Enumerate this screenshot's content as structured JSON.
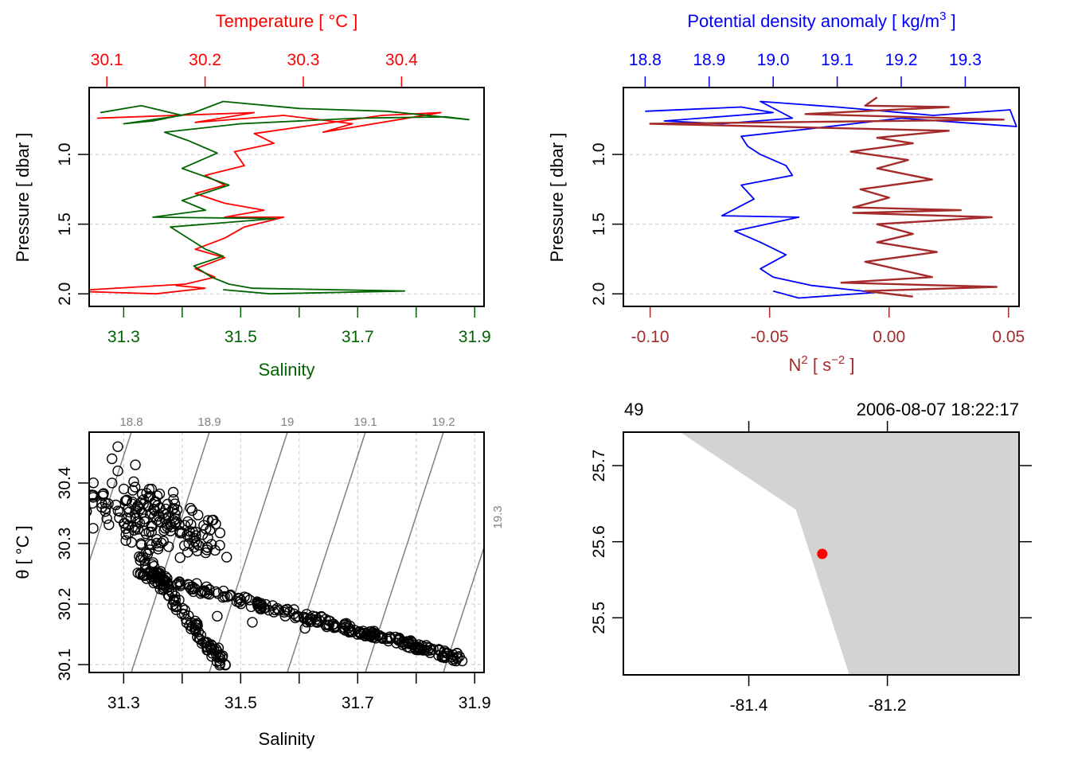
{
  "chart_data": [
    {
      "id": "profile_ts",
      "type": "line",
      "title": "",
      "top_axis": {
        "label": "Temperature [ °C ]",
        "color": "#ff0000",
        "ticks": [
          30.1,
          30.2,
          30.3,
          30.4
        ],
        "tick_labels": [
          "30.1",
          "30.2",
          "30.3",
          "30.4"
        ],
        "range": [
          30.082,
          30.484
        ]
      },
      "bottom_axis": {
        "label": "Salinity",
        "color": "#006400",
        "ticks": [
          31.3,
          31.4,
          31.5,
          31.6,
          31.7,
          31.8,
          31.9
        ],
        "tick_labels": [
          "31.3",
          "",
          "31.5",
          "",
          "31.7",
          "",
          "31.9"
        ],
        "range": [
          31.241,
          31.916
        ]
      },
      "left_axis": {
        "label": "Pressure [ dbar ]",
        "ticks": [
          1.0,
          1.5,
          2.0
        ],
        "tick_labels": [
          "1.0",
          "1.5",
          "2.0"
        ],
        "range": [
          0.52,
          2.09
        ],
        "reversed": true
      },
      "grid": "horizontal dashed at pressure ticks",
      "series": [
        {
          "name": "Temperature",
          "color": "#ff0000",
          "axis": "top",
          "points": [
            [
              30.09,
              0.74
            ],
            [
              30.25,
              0.7
            ],
            [
              30.19,
              0.77
            ],
            [
              30.28,
              0.72
            ],
            [
              30.35,
              0.78
            ],
            [
              30.32,
              0.84
            ],
            [
              30.44,
              0.7
            ],
            [
              30.38,
              0.72
            ],
            [
              30.3,
              0.8
            ],
            [
              30.25,
              0.85
            ],
            [
              30.27,
              0.92
            ],
            [
              30.23,
              0.98
            ],
            [
              30.24,
              1.08
            ],
            [
              30.2,
              1.15
            ],
            [
              30.22,
              1.22
            ],
            [
              30.19,
              1.28
            ],
            [
              30.22,
              1.35
            ],
            [
              30.26,
              1.4
            ],
            [
              30.22,
              1.45
            ],
            [
              30.28,
              1.45
            ],
            [
              30.24,
              1.52
            ],
            [
              30.22,
              1.6
            ],
            [
              30.19,
              1.68
            ],
            [
              30.22,
              1.74
            ],
            [
              30.19,
              1.82
            ],
            [
              30.21,
              1.88
            ],
            [
              30.18,
              1.93
            ],
            [
              30.06,
              1.98
            ],
            [
              30.15,
              2.0
            ],
            [
              30.2,
              1.96
            ],
            [
              30.17,
              1.94
            ]
          ]
        },
        {
          "name": "Salinity",
          "color": "#006400",
          "axis": "bottom",
          "points": [
            [
              31.26,
              0.7
            ],
            [
              31.33,
              0.65
            ],
            [
              31.4,
              0.72
            ],
            [
              31.3,
              0.78
            ],
            [
              31.35,
              0.76
            ],
            [
              31.42,
              0.7
            ],
            [
              31.47,
              0.62
            ],
            [
              31.6,
              0.67
            ],
            [
              31.75,
              0.69
            ],
            [
              31.89,
              0.75
            ],
            [
              31.85,
              0.73
            ],
            [
              31.7,
              0.74
            ],
            [
              31.5,
              0.78
            ],
            [
              31.37,
              0.84
            ],
            [
              31.41,
              0.9
            ],
            [
              31.46,
              0.99
            ],
            [
              31.4,
              1.1
            ],
            [
              31.48,
              1.22
            ],
            [
              31.4,
              1.33
            ],
            [
              31.44,
              1.4
            ],
            [
              31.35,
              1.45
            ],
            [
              31.56,
              1.46
            ],
            [
              31.38,
              1.52
            ],
            [
              31.41,
              1.6
            ],
            [
              31.44,
              1.68
            ],
            [
              31.47,
              1.73
            ],
            [
              31.42,
              1.8
            ],
            [
              31.45,
              1.88
            ],
            [
              31.48,
              1.93
            ],
            [
              31.52,
              1.96
            ],
            [
              31.78,
              1.98
            ],
            [
              31.55,
              2.0
            ],
            [
              31.47,
              1.97
            ]
          ]
        }
      ]
    },
    {
      "id": "profile_density_n2",
      "type": "line",
      "top_axis": {
        "label": "Potential density anomaly [ kg/m³ ]",
        "color": "#0000ff",
        "ticks": [
          18.8,
          18.9,
          19.0,
          19.1,
          19.2,
          19.3
        ],
        "tick_labels": [
          "18.8",
          "18.9",
          "19.0",
          "19.1",
          "19.2",
          "19.3"
        ],
        "range": [
          18.766,
          19.384
        ]
      },
      "bottom_axis": {
        "label": "N² [ s⁻² ]",
        "color": "#a52a2a",
        "ticks": [
          -0.1,
          -0.05,
          0.0,
          0.05
        ],
        "tick_labels": [
          "-0.10",
          "-0.05",
          "0.00",
          "0.05"
        ],
        "range": [
          -0.1112,
          0.0544
        ]
      },
      "left_axis": {
        "label": "Pressure [ dbar ]",
        "ticks": [
          1.0,
          1.5,
          2.0
        ],
        "tick_labels": [
          "1.0",
          "1.5",
          "2.0"
        ],
        "range": [
          0.52,
          2.09
        ],
        "reversed": true
      },
      "series": [
        {
          "name": "Potential density anomaly",
          "color": "#0000ff",
          "axis": "top",
          "points": [
            [
              18.8,
              0.69
            ],
            [
              18.95,
              0.66
            ],
            [
              19.0,
              0.7
            ],
            [
              18.83,
              0.76
            ],
            [
              18.92,
              0.78
            ],
            [
              19.03,
              0.74
            ],
            [
              18.98,
              0.62
            ],
            [
              19.1,
              0.66
            ],
            [
              19.25,
              0.72
            ],
            [
              19.37,
              0.68
            ],
            [
              19.38,
              0.8
            ],
            [
              19.2,
              0.74
            ],
            [
              19.05,
              0.82
            ],
            [
              18.95,
              0.87
            ],
            [
              18.96,
              0.94
            ],
            [
              18.98,
              1.0
            ],
            [
              19.02,
              1.08
            ],
            [
              19.03,
              1.15
            ],
            [
              18.95,
              1.22
            ],
            [
              18.97,
              1.32
            ],
            [
              18.92,
              1.44
            ],
            [
              19.04,
              1.45
            ],
            [
              18.94,
              1.55
            ],
            [
              18.98,
              1.63
            ],
            [
              19.02,
              1.72
            ],
            [
              18.98,
              1.82
            ],
            [
              19.0,
              1.88
            ],
            [
              19.06,
              1.94
            ],
            [
              19.16,
              1.99
            ],
            [
              19.04,
              2.03
            ],
            [
              19.0,
              1.98
            ]
          ]
        },
        {
          "name": "N2",
          "color": "#a52a2a",
          "axis": "bottom",
          "points": [
            [
              -0.005,
              0.59
            ],
            [
              -0.01,
              0.65
            ],
            [
              0.025,
              0.66
            ],
            [
              -0.035,
              0.71
            ],
            [
              0.048,
              0.75
            ],
            [
              -0.1,
              0.78
            ],
            [
              0.025,
              0.83
            ],
            [
              -0.005,
              0.88
            ],
            [
              0.01,
              0.92
            ],
            [
              -0.016,
              0.98
            ],
            [
              0.008,
              1.04
            ],
            [
              -0.005,
              1.1
            ],
            [
              0.018,
              1.18
            ],
            [
              -0.012,
              1.25
            ],
            [
              0.0,
              1.31
            ],
            [
              -0.015,
              1.38
            ],
            [
              0.03,
              1.4
            ],
            [
              -0.015,
              1.42
            ],
            [
              0.043,
              1.45
            ],
            [
              -0.005,
              1.5
            ],
            [
              0.01,
              1.57
            ],
            [
              -0.005,
              1.63
            ],
            [
              0.02,
              1.7
            ],
            [
              -0.01,
              1.77
            ],
            [
              0.018,
              1.88
            ],
            [
              -0.02,
              1.92
            ],
            [
              0.045,
              1.95
            ],
            [
              -0.01,
              1.98
            ],
            [
              0.01,
              2.02
            ]
          ]
        }
      ]
    },
    {
      "id": "ts_diagram",
      "type": "scatter",
      "xlabel": "Salinity",
      "ylabel": "θ [ °C ]",
      "x_ticks": [
        31.3,
        31.4,
        31.5,
        31.6,
        31.7,
        31.8,
        31.9
      ],
      "x_tick_labels": [
        "31.3",
        "",
        "31.5",
        "",
        "31.7",
        "",
        "31.9"
      ],
      "y_ticks": [
        30.1,
        30.2,
        30.3,
        30.4
      ],
      "y_tick_labels": [
        "30.1",
        "30.2",
        "30.3",
        "30.4"
      ],
      "xlim": [
        31.241,
        31.916
      ],
      "ylim": [
        30.087,
        30.484
      ],
      "grid": true,
      "marker": "open-circle",
      "isopycnal_labels": [
        "18.8",
        "18.9",
        "19",
        "19.1",
        "19.2",
        "19.3"
      ],
      "isopycnal_color": "#808080",
      "clusters": [
        {
          "name": "upper-left spike",
          "points": [
            [
              31.29,
              30.46
            ],
            [
              31.28,
              30.44
            ],
            [
              31.29,
              30.42
            ],
            [
              31.32,
              30.43
            ],
            [
              31.28,
              30.4
            ]
          ]
        },
        {
          "name": "warm dense block",
          "from": [
            31.27,
            30.38
          ],
          "to": [
            31.42,
            30.3
          ],
          "count": 180
        },
        {
          "name": "main branch",
          "from": [
            31.33,
            30.25
          ],
          "to": [
            31.88,
            30.11
          ],
          "count": 260
        },
        {
          "name": "lower branch",
          "from": [
            31.33,
            30.28
          ],
          "to": [
            31.47,
            30.1
          ],
          "count": 110
        },
        {
          "name": "outliers",
          "points": [
            [
              31.46,
              30.18
            ],
            [
              31.52,
              30.17
            ],
            [
              31.61,
              30.16
            ],
            [
              31.7,
              30.15
            ]
          ]
        }
      ]
    },
    {
      "id": "station_map",
      "type": "scatter",
      "top_left_label": "49",
      "top_right_label": "2006-08-07 18:22:17",
      "x_ticks": [
        -81.4,
        -81.2
      ],
      "x_tick_labels": [
        "-81.4",
        "-81.2"
      ],
      "y_ticks": [
        25.5,
        25.6,
        25.7
      ],
      "y_tick_labels": [
        "25.5",
        "25.6",
        "25.7"
      ],
      "xlim": [
        -81.581,
        -81.01
      ],
      "ylim": [
        25.425,
        25.744
      ],
      "land_color": "#d3d3d3",
      "coastline": [
        [
          -81.499,
          25.744
        ],
        [
          -81.332,
          25.642
        ],
        [
          -81.255,
          25.425
        ]
      ],
      "station": {
        "lon": -81.294,
        "lat": 25.584,
        "color": "#ff0000"
      }
    }
  ]
}
